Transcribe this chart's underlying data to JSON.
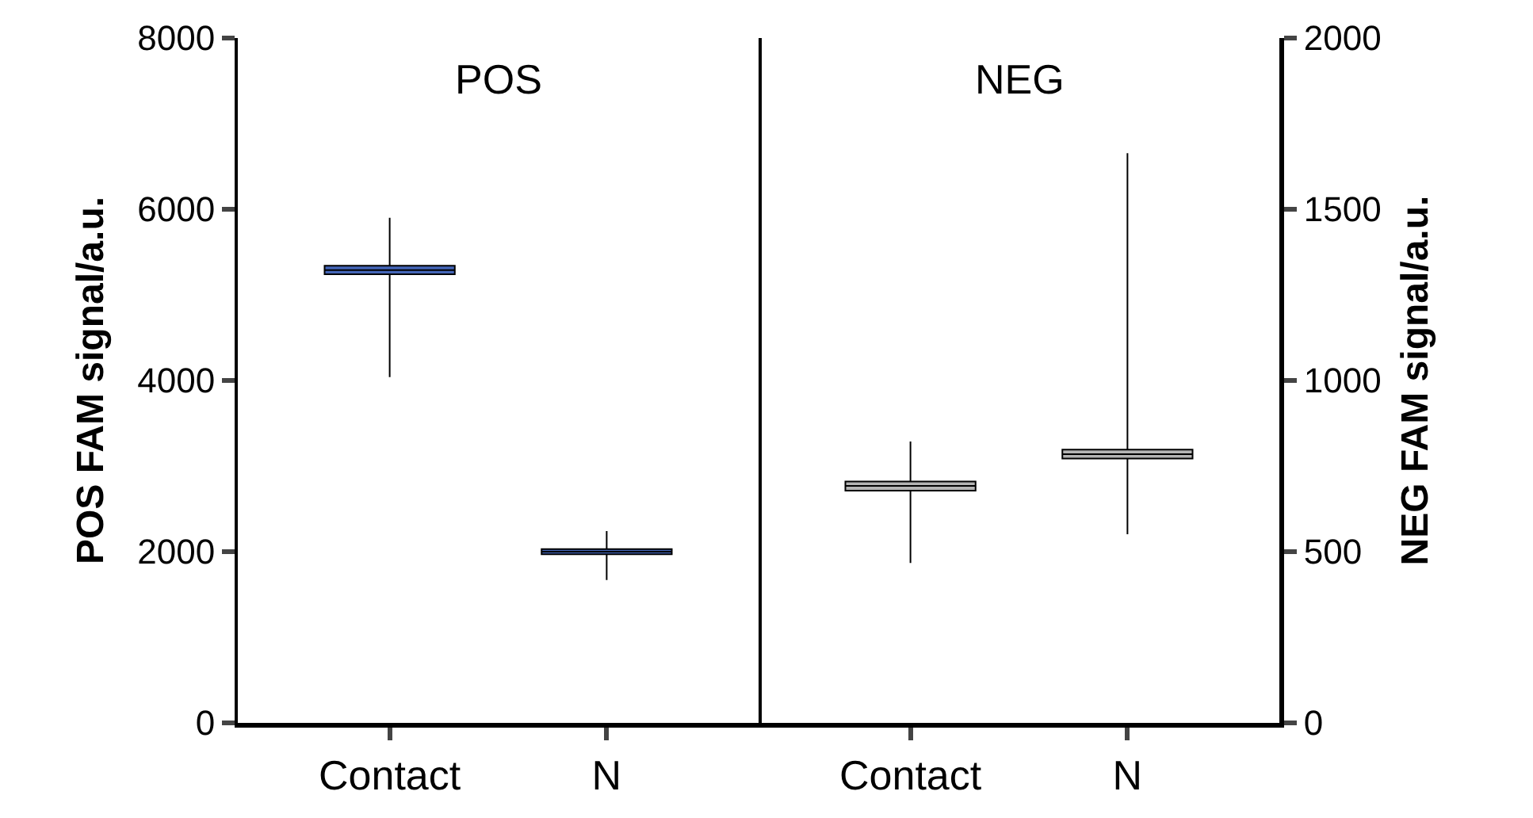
{
  "chart_data": [
    {
      "type": "box",
      "title": "POS",
      "ylabel": "POS FAM signal/a.u.",
      "categories": [
        "Contact",
        "N"
      ],
      "ylim": [
        0,
        8000
      ],
      "yticks": [
        0,
        2000,
        4000,
        6000,
        8000
      ],
      "grid": false,
      "series": [
        {
          "color": "#4466b8",
          "boxes": [
            {
              "low": 4040,
              "q1": 5240,
              "median": 5290,
              "q3": 5340,
              "high": 5900
            },
            {
              "low": 1670,
              "q1": 1970,
              "median": 2000,
              "q3": 2030,
              "high": 2240
            }
          ]
        }
      ]
    },
    {
      "type": "box",
      "title": "NEG",
      "ylabel": "NEG FAM signal/a.u.",
      "categories": [
        "Contact",
        "N"
      ],
      "ylim": [
        0,
        2000
      ],
      "yticks": [
        0,
        500,
        1000,
        1500,
        2000
      ],
      "grid": false,
      "series": [
        {
          "color": "#b4b4b4",
          "boxes": [
            {
              "low": 467,
              "q1": 678,
              "median": 692,
              "q3": 705,
              "high": 822
            },
            {
              "low": 551,
              "q1": 772,
              "median": 785,
              "q3": 798,
              "high": 1664
            }
          ]
        }
      ]
    }
  ]
}
